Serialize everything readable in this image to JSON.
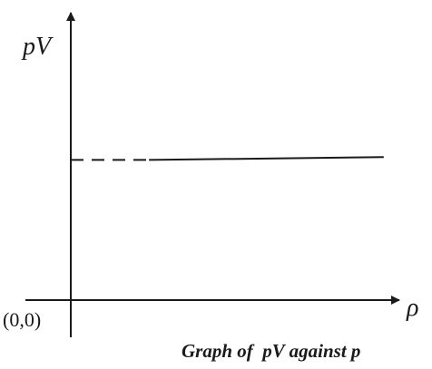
{
  "chart_data": {
    "type": "line",
    "title": "Graph of  pV against p",
    "xlabel": "ρ",
    "ylabel": "pV",
    "origin_label": "(0,0)",
    "grid": false,
    "legend": "none",
    "series": [
      {
        "style": "dashed",
        "x": [
          0,
          1
        ],
        "y": [
          1.0,
          1.0
        ]
      },
      {
        "style": "solid",
        "x": [
          1,
          4
        ],
        "y": [
          1.0,
          1.02
        ]
      }
    ],
    "xlim": [
      0,
      4.2
    ],
    "ylim": [
      0,
      2.05
    ],
    "colors": {
      "ink": "#1a1a1a"
    }
  }
}
